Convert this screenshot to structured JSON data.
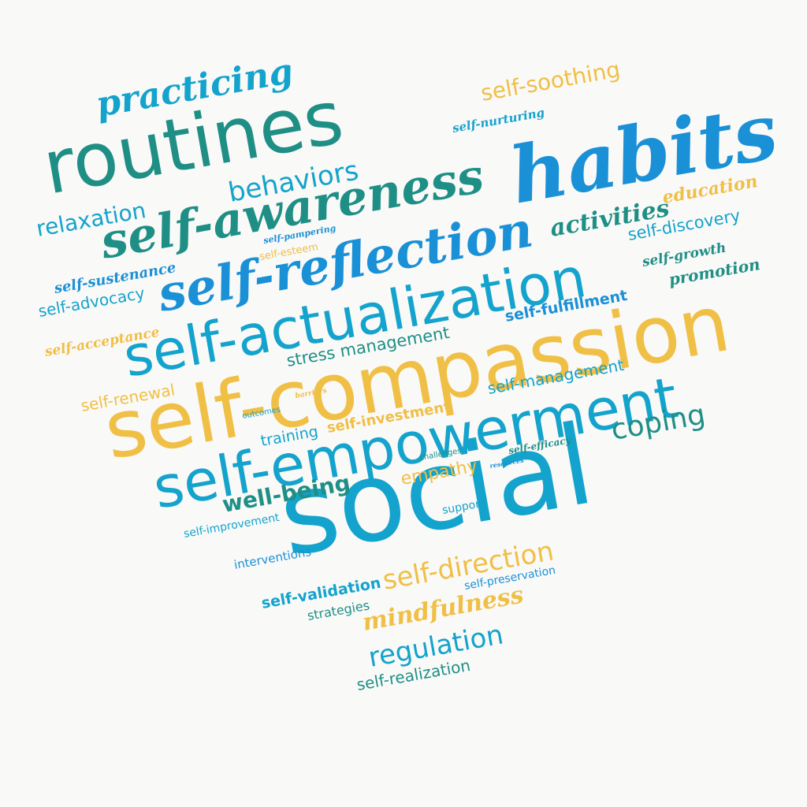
{
  "colors": {
    "background": "#f9f9f8",
    "teal": "#1f8f86",
    "cyan": "#14a3cc",
    "blue": "#1a90d6",
    "yellow": "#f0bf45"
  },
  "words": [
    {
      "text": "social",
      "color": "cyan"
    },
    {
      "text": "self-compassion",
      "color": "yellow"
    },
    {
      "text": "self-empowerment",
      "color": "cyan"
    },
    {
      "text": "self-actualization",
      "color": "cyan"
    },
    {
      "text": "habits",
      "color": "blue"
    },
    {
      "text": "routines",
      "color": "teal"
    },
    {
      "text": "self-awareness",
      "color": "teal"
    },
    {
      "text": "self-reflection",
      "color": "blue"
    },
    {
      "text": "practicing",
      "color": "cyan"
    },
    {
      "text": "behaviors",
      "color": "cyan"
    },
    {
      "text": "relaxation",
      "color": "cyan"
    },
    {
      "text": "self-soothing",
      "color": "yellow"
    },
    {
      "text": "self-nurturing",
      "color": "cyan"
    },
    {
      "text": "education",
      "color": "yellow"
    },
    {
      "text": "activities",
      "color": "teal"
    },
    {
      "text": "self-discovery",
      "color": "cyan"
    },
    {
      "text": "self-growth",
      "color": "teal"
    },
    {
      "text": "promotion",
      "color": "teal"
    },
    {
      "text": "self-fulfillment",
      "color": "blue"
    },
    {
      "text": "self-pampering",
      "color": "blue"
    },
    {
      "text": "self-esteem",
      "color": "yellow"
    },
    {
      "text": "self-sustenance",
      "color": "blue"
    },
    {
      "text": "self-advocacy",
      "color": "cyan"
    },
    {
      "text": "self-acceptance",
      "color": "yellow"
    },
    {
      "text": "stress management",
      "color": "teal"
    },
    {
      "text": "self-renewal",
      "color": "yellow"
    },
    {
      "text": "self-management",
      "color": "cyan"
    },
    {
      "text": "barriers",
      "color": "yellow"
    },
    {
      "text": "outcomes",
      "color": "cyan"
    },
    {
      "text": "self-investment",
      "color": "yellow"
    },
    {
      "text": "coping",
      "color": "teal"
    },
    {
      "text": "training",
      "color": "cyan"
    },
    {
      "text": "challenges",
      "color": "teal"
    },
    {
      "text": "self-efficacy",
      "color": "teal"
    },
    {
      "text": "resources",
      "color": "blue"
    },
    {
      "text": "empathy",
      "color": "yellow"
    },
    {
      "text": "well-being",
      "color": "teal"
    },
    {
      "text": "support",
      "color": "cyan"
    },
    {
      "text": "self-improvement",
      "color": "cyan"
    },
    {
      "text": "interventions",
      "color": "blue"
    },
    {
      "text": "self-direction",
      "color": "yellow"
    },
    {
      "text": "self-preservation",
      "color": "blue"
    },
    {
      "text": "self-validation",
      "color": "cyan"
    },
    {
      "text": "strategies",
      "color": "teal"
    },
    {
      "text": "mindfulness",
      "color": "yellow"
    },
    {
      "text": "regulation",
      "color": "cyan"
    },
    {
      "text": "self-realization",
      "color": "teal"
    }
  ]
}
